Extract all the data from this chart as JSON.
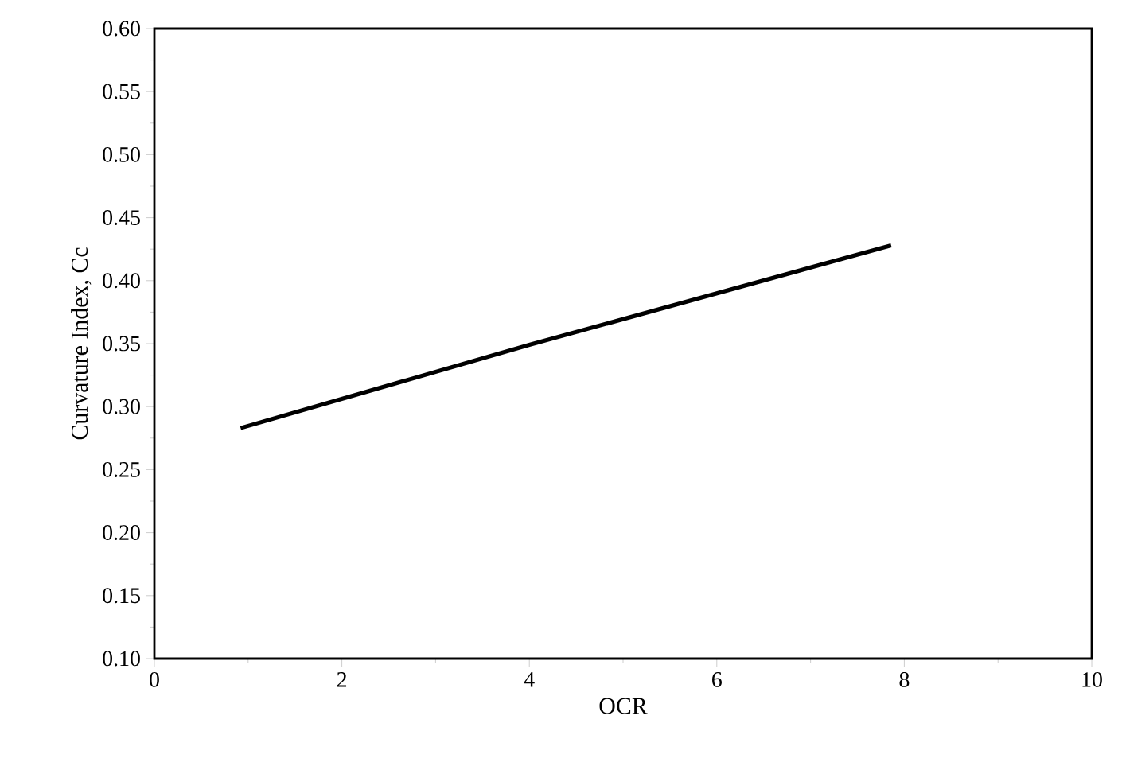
{
  "chart_data": {
    "type": "line",
    "xlabel": "OCR",
    "ylabel": "Curvature Index, Cc",
    "series": [
      {
        "color": "#000000",
        "x": [
          0.92,
          4.0,
          7.86
        ],
        "values": [
          0.283,
          0.349,
          0.428
        ]
      }
    ],
    "xlim": [
      0,
      10
    ],
    "ylim": [
      0.1,
      0.6
    ],
    "xticks": [
      0,
      2,
      4,
      6,
      8,
      10
    ],
    "yticks": [
      {
        "value": 0.1,
        "label": "0.10"
      },
      {
        "value": 0.15,
        "label": "0.15"
      },
      {
        "value": 0.2,
        "label": "0.20"
      },
      {
        "value": 0.25,
        "label": "0.25"
      },
      {
        "value": 0.3,
        "label": "0.30"
      },
      {
        "value": 0.35,
        "label": "0.35"
      },
      {
        "value": 0.4,
        "label": "0.40"
      },
      {
        "value": 0.45,
        "label": "0.45"
      },
      {
        "value": 0.5,
        "label": "0.50"
      },
      {
        "value": 0.55,
        "label": "0.55"
      },
      {
        "value": 0.6,
        "label": "0.60"
      }
    ],
    "grid": false,
    "marker": "none",
    "line_style": "solid"
  }
}
